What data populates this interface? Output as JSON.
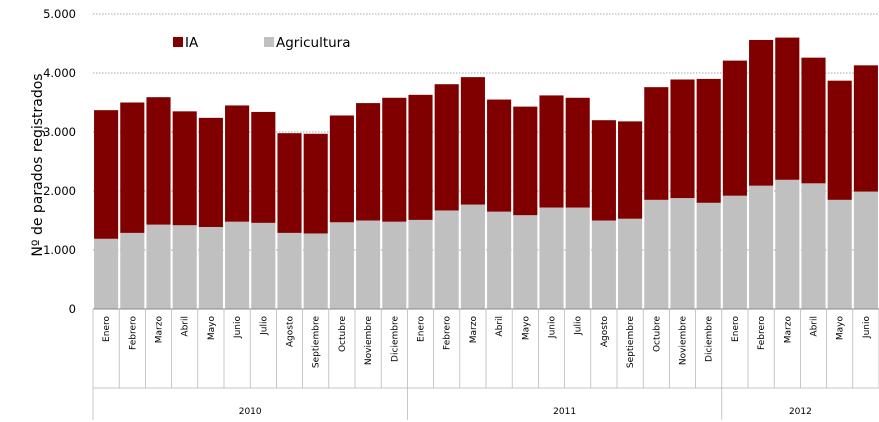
{
  "chart_data": {
    "type": "bar",
    "stacked": true,
    "ylabel": "Nº de parados registrados",
    "ylim": [
      0,
      5000
    ],
    "yticks": [
      0,
      1000,
      2000,
      3000,
      4000,
      5000
    ],
    "ytick_labels": [
      "0",
      "1.000",
      "2.000",
      "3.000",
      "4.000",
      "5.000"
    ],
    "grid": "horizontal, dotted",
    "legend_placement": "top-left",
    "categories": [
      "Enero",
      "Febrero",
      "Marzo",
      "Abril",
      "Mayo",
      "Junio",
      "Julio",
      "Agosto",
      "Septiembre",
      "Octubre",
      "Noviembre",
      "Diciembre",
      "Enero",
      "Febrero",
      "Marzo",
      "Abril",
      "Mayo",
      "Junio",
      "Julio",
      "Agosto",
      "Septiembre",
      "Octubre",
      "Noviembre",
      "Diciembre",
      "Enero",
      "Febrero",
      "Marzo",
      "Abril",
      "Mayo",
      "Junio"
    ],
    "groups": [
      {
        "label": "2010",
        "count": 12
      },
      {
        "label": "2011",
        "count": 12
      },
      {
        "label": "2012",
        "count": 6
      }
    ],
    "series": [
      {
        "name": "Agricultura",
        "color": "#c0c0c0",
        "values": [
          1190,
          1290,
          1430,
          1420,
          1390,
          1480,
          1460,
          1290,
          1280,
          1470,
          1500,
          1480,
          1510,
          1670,
          1770,
          1650,
          1590,
          1720,
          1720,
          1500,
          1530,
          1850,
          1880,
          1800,
          1920,
          2090,
          2190,
          2130,
          1850,
          1990
        ]
      },
      {
        "name": "IA",
        "color": "#800000",
        "values": [
          2180,
          2210,
          2160,
          1930,
          1850,
          1970,
          1880,
          1690,
          1690,
          1810,
          1990,
          2100,
          2120,
          2140,
          2160,
          1900,
          1840,
          1900,
          1860,
          1700,
          1650,
          1910,
          2010,
          2100,
          2290,
          2470,
          2410,
          2130,
          2020,
          2140
        ]
      }
    ]
  }
}
